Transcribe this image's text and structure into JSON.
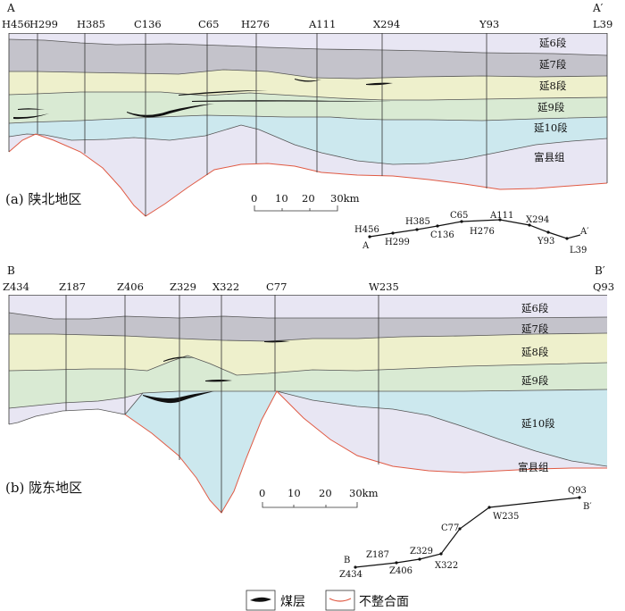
{
  "panel_a": {
    "section_start": "A",
    "section_end": "A′",
    "wells": [
      "H456",
      "H299",
      "H385",
      "C136",
      "C65",
      "H276",
      "A111",
      "X294",
      "Y93",
      "L39"
    ],
    "layers": [
      "延6段",
      "延7段",
      "延8段",
      "延9段",
      "延10段",
      "富县组"
    ],
    "caption": "(a) 陕北地区",
    "scale_ticks": [
      "0",
      "10",
      "20",
      "30km"
    ],
    "map": {
      "start": "A",
      "end": "A′",
      "wells": [
        "H456",
        "H385",
        "C65",
        "A111",
        "X294",
        "H299",
        "C136",
        "H276",
        "Y93",
        "L39"
      ]
    }
  },
  "panel_b": {
    "section_start": "B",
    "section_end": "B′",
    "wells": [
      "Z434",
      "Z187",
      "Z406",
      "Z329",
      "X322",
      "C77",
      "W235",
      "Q93"
    ],
    "layers": [
      "延6段",
      "延7段",
      "延8段",
      "延9段",
      "延10段",
      "富县组"
    ],
    "caption": "(b) 陇东地区",
    "scale_ticks": [
      "0",
      "10",
      "20",
      "30km"
    ],
    "map": {
      "start": "B",
      "end": "B′",
      "wells": [
        "Z434",
        "Z187",
        "Z406",
        "Z329",
        "X322",
        "C77",
        "W235",
        "Q93"
      ]
    }
  },
  "legend": {
    "coal_label": "煤层",
    "unconformity_label": "不整合面"
  },
  "colors": {
    "lavender": "#e8e6f3",
    "gray": "#c4c3cb",
    "yellow": "#eef0cc",
    "green": "#d9ead3",
    "cyan": "#cce8ee",
    "unconformity": "#e05a44"
  }
}
